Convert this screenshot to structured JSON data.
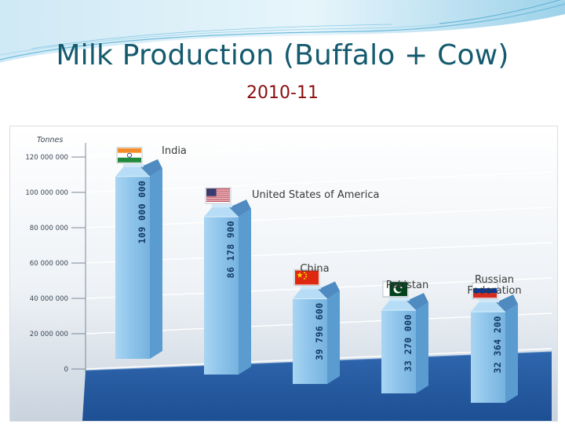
{
  "slide": {
    "title": "Milk Production (Buffalo + Cow)",
    "subtitle": "2010-11"
  },
  "colors": {
    "title": "#145a6e",
    "subtitle": "#8b0d0d",
    "carton_front": "#8cc3ea",
    "carton_side": "#5a9cd0",
    "floor": "#1d4f93",
    "value_label": "#123a66"
  },
  "chart_data": {
    "type": "bar",
    "title": "",
    "ylabel": "Tonnes",
    "xlabel": "",
    "ylim": [
      0,
      120000000
    ],
    "yticks": [
      0,
      20000000,
      40000000,
      60000000,
      80000000,
      100000000,
      120000000
    ],
    "ytick_labels": [
      "0",
      "20 000 000",
      "40 000 000",
      "60 000 000",
      "80 000 000",
      "100 000 000",
      "120 000 000"
    ],
    "grid": true,
    "categories": [
      "India",
      "United States of America",
      "China",
      "Pakistan",
      "Russian Federation"
    ],
    "values": [
      109000000,
      86178900,
      39796600,
      33270000,
      32364200
    ],
    "value_labels": [
      "109 000 000",
      "86 178 900",
      "39 796 600",
      "33 270 000",
      "32 364 200"
    ],
    "flag_icons": [
      "india-flag-icon",
      "usa-flag-icon",
      "china-flag-icon",
      "pakistan-flag-icon",
      "russia-flag-icon"
    ]
  }
}
